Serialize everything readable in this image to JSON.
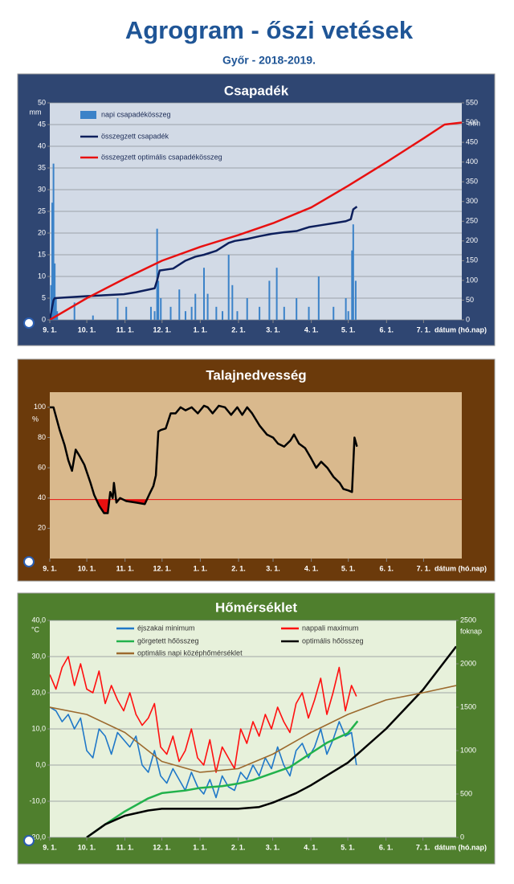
{
  "header": {
    "title": "Agrogram - őszi vetések",
    "subtitle": "Győr - 2018-2019."
  },
  "chart_data": [
    {
      "type": "combo",
      "title": "Csapadék",
      "ylabel": "mm",
      "y2label": "mm",
      "xlabel": "dátum (hó.nap)",
      "xlim": [
        0,
        334
      ],
      "xticks": [
        {
          "value": 0,
          "label": "9. 1."
        },
        {
          "value": 30,
          "label": "10. 1."
        },
        {
          "value": 61,
          "label": "11. 1."
        },
        {
          "value": 91,
          "label": "12. 1."
        },
        {
          "value": 122,
          "label": "1. 1."
        },
        {
          "value": 153,
          "label": "2. 1."
        },
        {
          "value": 181,
          "label": "3. 1."
        },
        {
          "value": 212,
          "label": "4. 1."
        },
        {
          "value": 242,
          "label": "5. 1."
        },
        {
          "value": 273,
          "label": "6. 1."
        },
        {
          "value": 303,
          "label": "7. 1."
        }
      ],
      "ylim": [
        0,
        50
      ],
      "yticks": [
        0,
        5,
        10,
        15,
        20,
        25,
        30,
        35,
        40,
        45,
        50
      ],
      "y2lim": [
        0,
        550
      ],
      "y2ticks": [
        0,
        50,
        100,
        150,
        200,
        250,
        300,
        350,
        400,
        450,
        500,
        550
      ],
      "grid": true,
      "series": [
        {
          "name": "napi csapadékösszeg",
          "type": "bar",
          "color": "#3b82c8",
          "x": [
            1,
            2,
            3,
            4,
            5,
            6,
            20,
            35,
            55,
            62,
            82,
            85,
            87,
            88,
            90,
            98,
            105,
            110,
            115,
            118,
            125,
            128,
            135,
            140,
            145,
            148,
            152,
            160,
            170,
            178,
            184,
            190,
            200,
            210,
            218,
            230,
            240,
            242,
            245,
            246,
            248
          ],
          "values": [
            8,
            27,
            36,
            13,
            5,
            2,
            4,
            1,
            5,
            3,
            3,
            2,
            21,
            9,
            5,
            3,
            7,
            2,
            3,
            6,
            12,
            6,
            3,
            2,
            15,
            8,
            2,
            5,
            3,
            9,
            12,
            3,
            5,
            3,
            10,
            3,
            5,
            2,
            16,
            22,
            9
          ]
        },
        {
          "name": "összegzett csapadék",
          "type": "line",
          "axis": "y2",
          "color": "#0d1f5c",
          "x": [
            0,
            3,
            4,
            30,
            60,
            70,
            85,
            87,
            89,
            100,
            110,
            118,
            125,
            135,
            145,
            150,
            160,
            170,
            180,
            190,
            200,
            210,
            220,
            230,
            240,
            244,
            246,
            249
          ],
          "values": [
            0,
            50,
            55,
            60,
            65,
            70,
            80,
            100,
            125,
            130,
            150,
            160,
            165,
            175,
            195,
            200,
            205,
            212,
            218,
            222,
            225,
            235,
            240,
            245,
            250,
            255,
            280,
            287
          ]
        },
        {
          "name": "összegzett optimális csapadékösszeg",
          "type": "line",
          "axis": "y2",
          "color": "#e81010",
          "x": [
            0,
            30,
            61,
            91,
            122,
            153,
            181,
            212,
            242,
            273,
            303,
            320,
            334
          ],
          "values": [
            0,
            55,
            105,
            150,
            185,
            215,
            245,
            285,
            340,
            400,
            460,
            495,
            500
          ]
        }
      ]
    },
    {
      "type": "combo",
      "title": "Talajnedvesség",
      "ylabel": "%",
      "xlabel": "dátum (hó.nap)",
      "xlim": [
        0,
        334
      ],
      "xticks": [
        {
          "value": 0,
          "label": "9. 1."
        },
        {
          "value": 30,
          "label": "10. 1."
        },
        {
          "value": 61,
          "label": "11. 1."
        },
        {
          "value": 91,
          "label": "12. 1."
        },
        {
          "value": 122,
          "label": "1. 1."
        },
        {
          "value": 153,
          "label": "2. 1."
        },
        {
          "value": 181,
          "label": "3. 1."
        },
        {
          "value": 212,
          "label": "4. 1."
        },
        {
          "value": 242,
          "label": "5. 1."
        },
        {
          "value": 273,
          "label": "6. 1."
        },
        {
          "value": 303,
          "label": "7. 1."
        }
      ],
      "ylim": [
        0,
        110
      ],
      "yticks": [
        20,
        40,
        60,
        80,
        100
      ],
      "grid": false,
      "reference_line": {
        "value": 39,
        "color": "#e81010"
      },
      "series": [
        {
          "type": "line",
          "color": "#000000",
          "deficit_color": "#e81010",
          "x": [
            0,
            3,
            8,
            12,
            15,
            18,
            21,
            24,
            28,
            33,
            36,
            40,
            44,
            47,
            49,
            51,
            52,
            54,
            57,
            62,
            70,
            77,
            81,
            84,
            86,
            88,
            90,
            94,
            98,
            102,
            106,
            110,
            115,
            120,
            125,
            128,
            132,
            137,
            142,
            147,
            152,
            156,
            160,
            164,
            170,
            176,
            181,
            185,
            190,
            195,
            198,
            202,
            207,
            212,
            216,
            220,
            225,
            230,
            235,
            238,
            242,
            245,
            247,
            249
          ],
          "values": [
            100,
            100,
            85,
            75,
            65,
            58,
            72,
            68,
            62,
            50,
            42,
            35,
            30,
            30,
            44,
            40,
            50,
            37,
            40,
            38,
            37,
            36,
            43,
            48,
            55,
            84,
            85,
            86,
            96,
            96,
            100,
            98,
            100,
            96,
            101,
            100,
            96,
            101,
            100,
            95,
            100,
            95,
            100,
            96,
            88,
            82,
            80,
            76,
            74,
            78,
            82,
            76,
            73,
            66,
            60,
            64,
            60,
            54,
            50,
            46,
            45,
            44,
            80,
            74
          ]
        }
      ]
    },
    {
      "type": "combo",
      "title": "Hőmérséklet",
      "ylabel": "°C",
      "y2label": "foknap",
      "xlabel": "dátum (hó.nap)",
      "xlim": [
        0,
        330
      ],
      "xticks": [
        {
          "value": 0,
          "label": "9. 1."
        },
        {
          "value": 30,
          "label": "10. 1."
        },
        {
          "value": 61,
          "label": "11. 1."
        },
        {
          "value": 91,
          "label": "12. 1."
        },
        {
          "value": 122,
          "label": "1. 1."
        },
        {
          "value": 153,
          "label": "2. 1."
        },
        {
          "value": 181,
          "label": "3. 1."
        },
        {
          "value": 212,
          "label": "4. 1."
        },
        {
          "value": 242,
          "label": "5. 1."
        },
        {
          "value": 273,
          "label": "6. 1."
        },
        {
          "value": 303,
          "label": "7. 1."
        }
      ],
      "ylim": [
        -20,
        40
      ],
      "yticks": [
        {
          "value": -20,
          "label": "-20,0"
        },
        {
          "value": -10,
          "label": "-10,0"
        },
        {
          "value": 0,
          "label": "0,0"
        },
        {
          "value": 10,
          "label": "10,0"
        },
        {
          "value": 20,
          "label": "20,0"
        },
        {
          "value": 30,
          "label": "30,0"
        },
        {
          "value": 40,
          "label": "40,0"
        }
      ],
      "y2lim": [
        0,
        2500
      ],
      "y2ticks": [
        0,
        500,
        1000,
        1500,
        2000,
        2500
      ],
      "grid": true,
      "series": [
        {
          "name": "éjszakai minimum",
          "type": "line",
          "color": "#1f78c8",
          "x": [
            0,
            5,
            10,
            15,
            20,
            25,
            30,
            35,
            40,
            45,
            50,
            55,
            60,
            65,
            70,
            75,
            80,
            85,
            90,
            95,
            100,
            105,
            110,
            115,
            120,
            125,
            130,
            135,
            140,
            145,
            150,
            155,
            160,
            165,
            170,
            175,
            180,
            185,
            190,
            195,
            200,
            205,
            210,
            215,
            220,
            225,
            230,
            235,
            240,
            245,
            249
          ],
          "values": [
            16,
            15,
            12,
            14,
            10,
            13,
            4,
            2,
            10,
            8,
            3,
            9,
            7,
            5,
            8,
            0,
            -2,
            4,
            -3,
            -5,
            -1,
            -4,
            -7,
            -2,
            -6,
            -8,
            -4,
            -9,
            -3,
            -6,
            -7,
            -2,
            -4,
            0,
            -3,
            2,
            -1,
            5,
            0,
            -3,
            4,
            6,
            2,
            5,
            10,
            3,
            7,
            12,
            8,
            9,
            0
          ]
        },
        {
          "name": "nappali maximum",
          "type": "line",
          "color": "#ff1010",
          "x": [
            0,
            5,
            10,
            15,
            20,
            25,
            30,
            35,
            40,
            45,
            50,
            55,
            60,
            65,
            70,
            75,
            80,
            85,
            90,
            95,
            100,
            105,
            110,
            115,
            120,
            125,
            130,
            135,
            140,
            145,
            150,
            155,
            160,
            165,
            170,
            175,
            180,
            185,
            190,
            195,
            200,
            205,
            210,
            215,
            220,
            225,
            230,
            235,
            240,
            245,
            249
          ],
          "values": [
            25,
            21,
            27,
            30,
            22,
            28,
            21,
            20,
            26,
            17,
            22,
            18,
            15,
            20,
            14,
            11,
            13,
            17,
            5,
            3,
            8,
            1,
            4,
            10,
            2,
            0,
            7,
            -2,
            5,
            2,
            -1,
            10,
            6,
            12,
            8,
            14,
            10,
            16,
            12,
            9,
            17,
            20,
            13,
            18,
            24,
            14,
            20,
            27,
            15,
            22,
            19
          ]
        },
        {
          "name": "görgetett hőösszeg",
          "type": "line",
          "axis": "y2",
          "color": "#22b24c",
          "x": [
            30,
            45,
            61,
            80,
            91,
            110,
            122,
            140,
            153,
            165,
            181,
            195,
            212,
            225,
            242,
            250
          ],
          "values": [
            0,
            150,
            300,
            450,
            510,
            540,
            570,
            590,
            620,
            660,
            740,
            810,
            970,
            1090,
            1200,
            1340
          ]
        },
        {
          "name": "optimális hőösszeg",
          "type": "line",
          "axis": "y2",
          "color": "#000000",
          "x": [
            30,
            45,
            61,
            80,
            91,
            122,
            153,
            170,
            181,
            200,
            212,
            242,
            273,
            303,
            330
          ],
          "values": [
            0,
            150,
            250,
            310,
            330,
            330,
            330,
            350,
            400,
            510,
            600,
            860,
            1250,
            1700,
            2200
          ]
        },
        {
          "name": "optimális napi középhőmérséklet",
          "type": "line",
          "color": "#9c6a2e",
          "x": [
            0,
            30,
            61,
            91,
            122,
            153,
            181,
            212,
            242,
            273,
            303,
            330
          ],
          "values": [
            16,
            14,
            9,
            1,
            -2,
            -1,
            3,
            9,
            14,
            18,
            20,
            22
          ]
        }
      ]
    }
  ]
}
